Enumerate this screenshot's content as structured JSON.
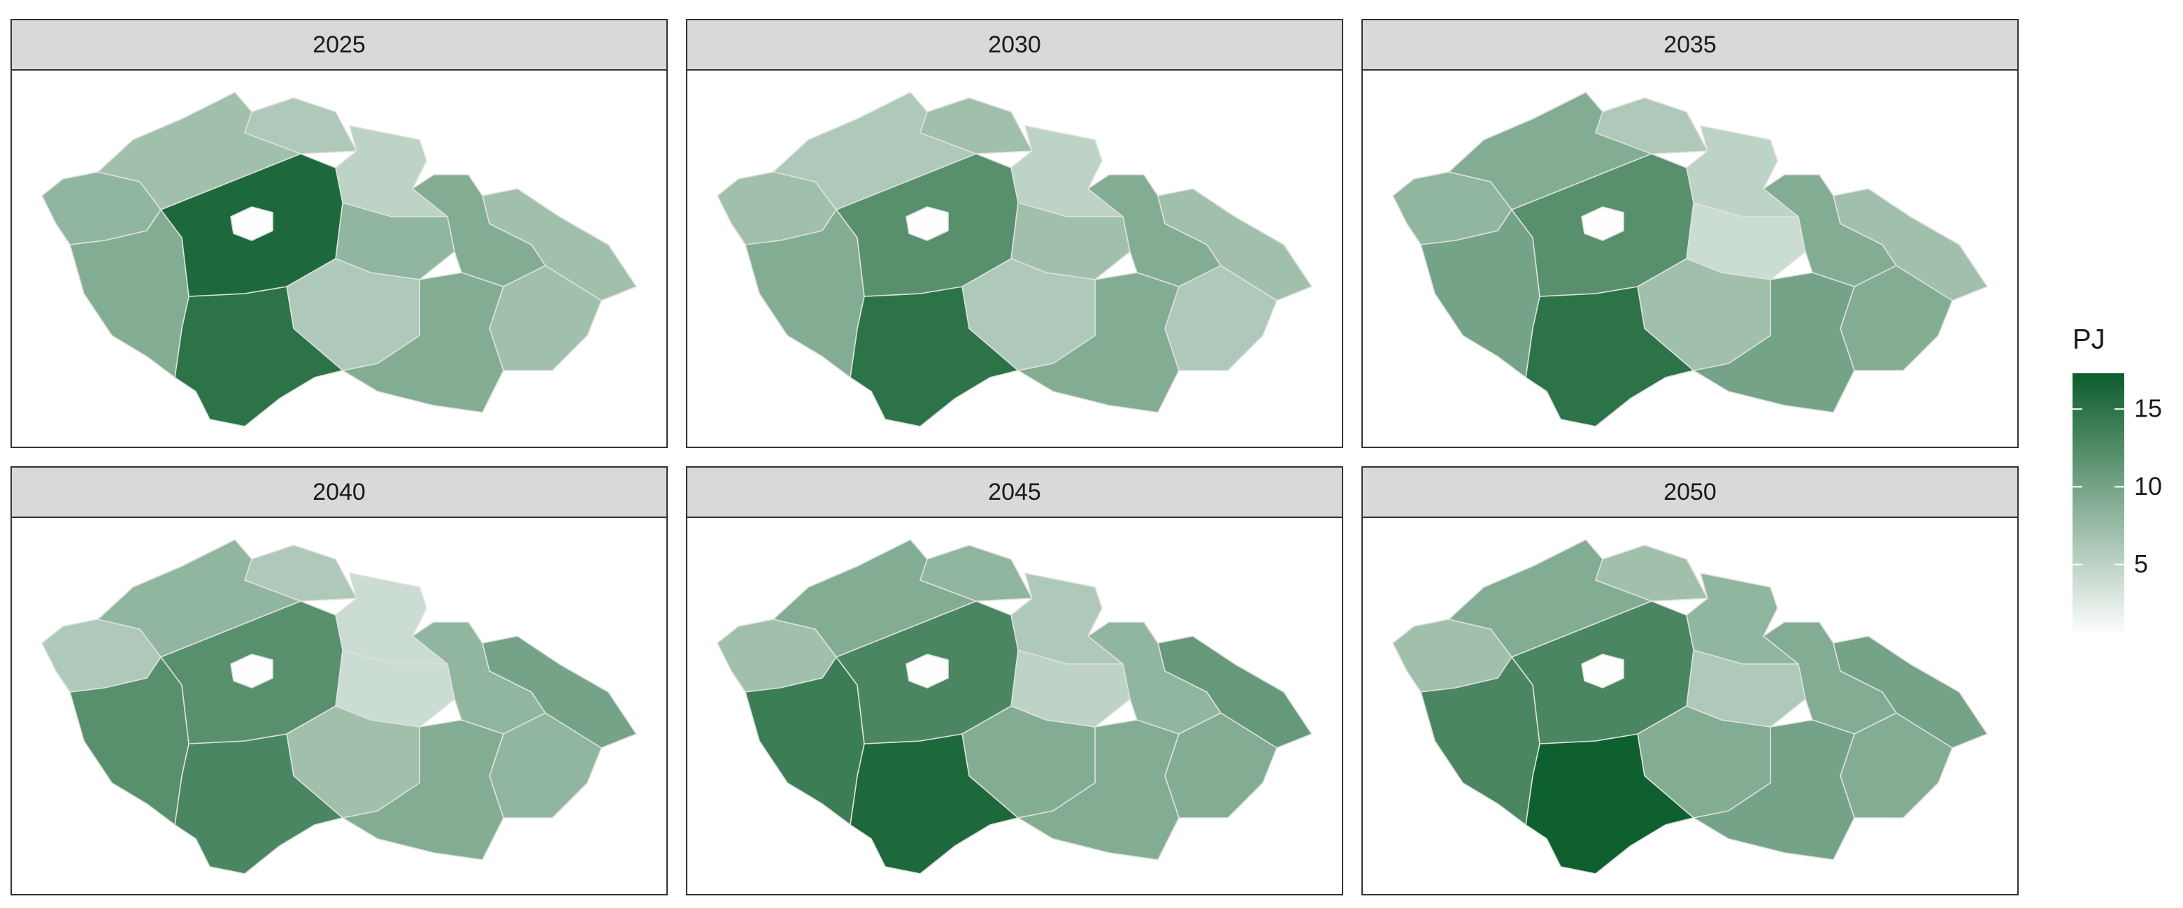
{
  "chart_data": {
    "type": "choropleth",
    "legend_title": "PJ",
    "colors": [
      "#ffffff",
      "#0b5d2b"
    ],
    "lim": [
      0.4,
      17.3
    ],
    "ticks": [
      5,
      10,
      15
    ],
    "panels": [
      {
        "title": "2025",
        "values": [
          8,
          7,
          6,
          5,
          8,
          9,
          7,
          7,
          9,
          6,
          15,
          9,
          16,
          0.5
        ]
      },
      {
        "title": "2030",
        "values": [
          7,
          6,
          7,
          5,
          7,
          9,
          7,
          6,
          9,
          6,
          15,
          9,
          12,
          0.5
        ]
      },
      {
        "title": "2035",
        "values": [
          8,
          9,
          6,
          5,
          4,
          9,
          7,
          9,
          10,
          7,
          15,
          10,
          12,
          0.5
        ]
      },
      {
        "title": "2040",
        "values": [
          6,
          8,
          6,
          4,
          4,
          8,
          10,
          8,
          9,
          7,
          13,
          12,
          12,
          0.5
        ]
      },
      {
        "title": "2045",
        "values": [
          7,
          9,
          8,
          6,
          5,
          8,
          11,
          9,
          9,
          9,
          16,
          14,
          13,
          0.5
        ]
      },
      {
        "title": "2050",
        "values": [
          7,
          9,
          7,
          8,
          6,
          9,
          10,
          9,
          10,
          9,
          17,
          13,
          13,
          0.5
        ]
      }
    ]
  }
}
